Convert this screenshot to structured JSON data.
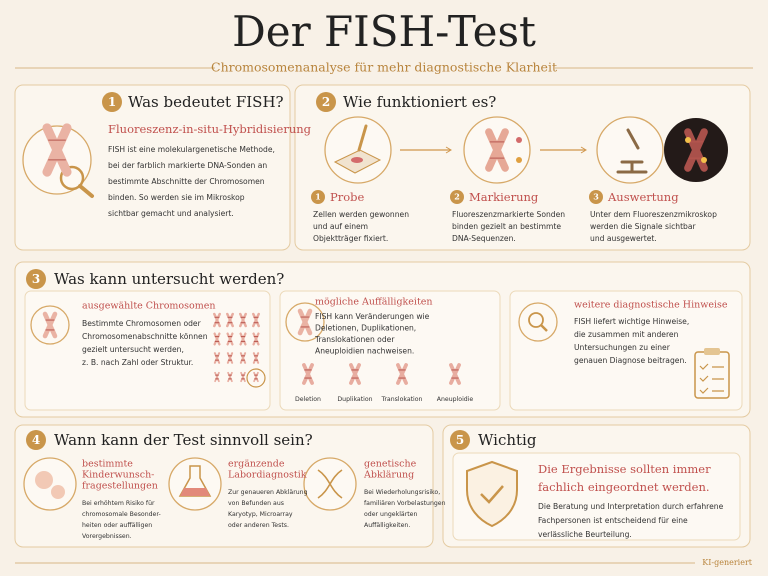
{
  "header": {
    "title": "Der FISH-Test",
    "subtitle": "Chromosomenanalyse für mehr diagnostische Klarheit"
  },
  "section1": {
    "number": "1",
    "heading": "Was bedeutet FISH?",
    "subheading": "Fluoreszenz-in-situ-Hybridisierung",
    "body": [
      "FISH ist eine molekulargenetische Methode,",
      "bei der farblich markierte DNA-Sonden an",
      "bestimmte Abschnitte der Chromosomen",
      "binden. So werden sie im Mikroskop",
      "sichtbar gemacht und analysiert."
    ]
  },
  "section2": {
    "number": "2",
    "heading": "Wie funktioniert es?",
    "steps": [
      {
        "number": "1",
        "title": "Probe",
        "body": [
          "Zellen werden gewonnen",
          "und auf einem",
          "Objektträger fixiert."
        ]
      },
      {
        "number": "2",
        "title": "Markierung",
        "body": [
          "Fluoreszenzmarkierte Sonden",
          "binden gezielt an bestimmte",
          "DNA-Sequenzen."
        ]
      },
      {
        "number": "3",
        "title": "Auswertung",
        "body": [
          "Unter dem Fluoreszenzmikroskop",
          "werden die Signale sichtbar",
          "und ausgewertet."
        ]
      }
    ]
  },
  "section3": {
    "number": "3",
    "heading": "Was kann untersucht werden?",
    "cards": [
      {
        "title": "ausgewählte Chromosomen",
        "body": [
          "Bestimmte Chromosomen oder",
          "Chromosomenabschnitte können",
          "gezielt untersucht werden,",
          "z. B. nach Zahl oder Struktur."
        ]
      },
      {
        "title": "mögliche Auffälligkeiten",
        "body": [
          "FISH kann Veränderungen wie",
          "Deletionen, Duplikationen,",
          "Translokationen oder",
          "Aneuploidien nachweisen."
        ],
        "labels": [
          "Deletion",
          "Duplikation",
          "Translokation",
          "Aneuploidie"
        ]
      },
      {
        "title": "weitere diagnostische Hinweise",
        "body": [
          "FISH liefert wichtige Hinweise,",
          "die zusammen mit anderen",
          "Untersuchungen zu einer",
          "genauen Diagnose beitragen."
        ]
      }
    ]
  },
  "section4": {
    "number": "4",
    "heading": "Wann kann der Test sinnvoll sein?",
    "items": [
      {
        "title": [
          "bestimmte",
          "Kinderwunsch-",
          "fragestellungen"
        ],
        "body": [
          "Bei erhöhtem Risiko für",
          "chromosomale Besonder-",
          "heiten oder auffälligen",
          "Vorergebnissen."
        ]
      },
      {
        "title": [
          "ergänzende",
          "Labordiagnostik"
        ],
        "body": [
          "Zur genaueren Abklärung",
          "von Befunden aus",
          "Karyotyp, Microarray",
          "oder anderen Tests."
        ]
      },
      {
        "title": [
          "genetische",
          "Abklärung"
        ],
        "body": [
          "Bei Wiederholungsrisiko,",
          "familiären Vorbelastungen",
          "oder ungeklärten",
          "Auffälligkeiten."
        ]
      }
    ]
  },
  "section5": {
    "number": "5",
    "heading": "Wichtig",
    "highlight": [
      "Die Ergebnisse sollten immer",
      "fachlich eingeordnet werden."
    ],
    "body": [
      "Die Beratung und Interpretation durch erfahrene",
      "Fachpersonen ist entscheidend für eine",
      "verlässliche Beurteilung."
    ]
  },
  "footer": {
    "note": "KI-generiert"
  }
}
